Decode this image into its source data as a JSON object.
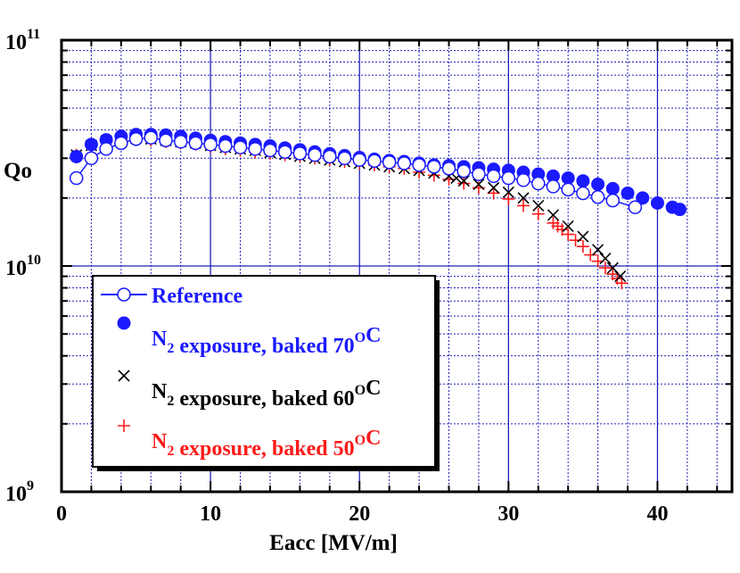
{
  "chart_data": {
    "type": "scatter",
    "xlabel": "Eacc [MV/m]",
    "ylabel": "Qo",
    "xlim": [
      0,
      45
    ],
    "ylim_log10": [
      9,
      11
    ],
    "x_ticks": [
      "0",
      "10",
      "20",
      "30",
      "40"
    ],
    "y_ticks": [
      {
        "base": "10",
        "exp": "9"
      },
      {
        "base": "10",
        "exp": "10"
      },
      {
        "base": "10",
        "exp": "11"
      }
    ],
    "grid": true,
    "legend_position": "lower-left",
    "colors": {
      "blue": "#1a1aff",
      "black": "#000000",
      "red": "#ff1a1a",
      "grid": "#2222bb"
    },
    "series": [
      {
        "name": "Reference",
        "label_parts": [
          {
            "t": "Reference"
          }
        ],
        "marker": "open-circle-line",
        "color": "#1a1aff",
        "points": [
          [
            1,
            24500000000.0
          ],
          [
            2,
            30000000000.0
          ],
          [
            3,
            33000000000.0
          ],
          [
            4,
            35000000000.0
          ],
          [
            5,
            36500000000.0
          ],
          [
            6,
            37000000000.0
          ],
          [
            7,
            36000000000.0
          ],
          [
            8,
            35500000000.0
          ],
          [
            9,
            35000000000.0
          ],
          [
            10,
            34500000000.0
          ],
          [
            11,
            34000000000.0
          ],
          [
            12,
            33500000000.0
          ],
          [
            13,
            33000000000.0
          ],
          [
            14,
            32500000000.0
          ],
          [
            15,
            32000000000.0
          ],
          [
            16,
            31500000000.0
          ],
          [
            17,
            31000000000.0
          ],
          [
            18,
            30500000000.0
          ],
          [
            19,
            30000000000.0
          ],
          [
            20,
            29500000000.0
          ],
          [
            21,
            29200000000.0
          ],
          [
            22,
            28800000000.0
          ],
          [
            23,
            28500000000.0
          ],
          [
            24,
            28000000000.0
          ],
          [
            25,
            27500000000.0
          ],
          [
            26,
            27000000000.0
          ],
          [
            27,
            26300000000.0
          ],
          [
            28,
            25500000000.0
          ],
          [
            29,
            25000000000.0
          ],
          [
            30,
            24500000000.0
          ],
          [
            31,
            24000000000.0
          ],
          [
            32,
            23200000000.0
          ],
          [
            33,
            22500000000.0
          ],
          [
            34,
            21800000000.0
          ],
          [
            35,
            21000000000.0
          ],
          [
            36,
            20200000000.0
          ],
          [
            37,
            19500000000.0
          ],
          [
            38.5,
            18200000000.0
          ]
        ]
      },
      {
        "name": "N2 exposure, baked 70OC",
        "label_parts": [
          {
            "t": "N"
          },
          {
            "sub": "2"
          },
          {
            "t": " exposure, baked 70"
          },
          {
            "sup": "O"
          },
          {
            "t": "C"
          }
        ],
        "marker": "filled-circle",
        "color": "#1a1aff",
        "points": [
          [
            1,
            30500000000.0
          ],
          [
            2,
            34500000000.0
          ],
          [
            3,
            36200000000.0
          ],
          [
            4,
            37500000000.0
          ],
          [
            5,
            38200000000.0
          ],
          [
            6,
            38200000000.0
          ],
          [
            7,
            38000000000.0
          ],
          [
            8,
            37500000000.0
          ],
          [
            9,
            36800000000.0
          ],
          [
            10,
            36000000000.0
          ],
          [
            11,
            35500000000.0
          ],
          [
            12,
            35000000000.0
          ],
          [
            13,
            34500000000.0
          ],
          [
            14,
            34000000000.0
          ],
          [
            15,
            33300000000.0
          ],
          [
            16,
            32700000000.0
          ],
          [
            17,
            32000000000.0
          ],
          [
            18,
            31400000000.0
          ],
          [
            19,
            30800000000.0
          ],
          [
            20,
            30200000000.0
          ],
          [
            21,
            29700000000.0
          ],
          [
            22,
            29300000000.0
          ],
          [
            23,
            29000000000.0
          ],
          [
            24,
            28500000000.0
          ],
          [
            25,
            28000000000.0
          ],
          [
            26,
            27800000000.0
          ],
          [
            27,
            27500000000.0
          ],
          [
            28,
            27200000000.0
          ],
          [
            29,
            26800000000.0
          ],
          [
            30,
            26500000000.0
          ],
          [
            31,
            26000000000.0
          ],
          [
            32,
            25500000000.0
          ],
          [
            33,
            25000000000.0
          ],
          [
            34,
            24500000000.0
          ],
          [
            35,
            23800000000.0
          ],
          [
            36,
            23000000000.0
          ],
          [
            37,
            22000000000.0
          ],
          [
            38,
            21000000000.0
          ],
          [
            39,
            20000000000.0
          ],
          [
            40,
            19000000000.0
          ],
          [
            41,
            18200000000.0
          ],
          [
            41.5,
            17800000000.0
          ]
        ]
      },
      {
        "name": "N2 exposure, baked 60OC",
        "label_parts": [
          {
            "t": "N"
          },
          {
            "sub": "2"
          },
          {
            "t": " exposure, baked 60"
          },
          {
            "sup": "O"
          },
          {
            "t": "C"
          }
        ],
        "marker": "x",
        "color": "#000000",
        "points": [
          [
            1,
            31000000000.0
          ],
          [
            2,
            34200000000.0
          ],
          [
            3,
            35800000000.0
          ],
          [
            4,
            36500000000.0
          ],
          [
            5,
            36800000000.0
          ],
          [
            6,
            36500000000.0
          ],
          [
            7,
            36000000000.0
          ],
          [
            8,
            35500000000.0
          ],
          [
            9,
            35000000000.0
          ],
          [
            10,
            34200000000.0
          ],
          [
            11,
            33500000000.0
          ],
          [
            12,
            33000000000.0
          ],
          [
            13,
            32500000000.0
          ],
          [
            14,
            31800000000.0
          ],
          [
            15,
            31200000000.0
          ],
          [
            16,
            30600000000.0
          ],
          [
            17,
            30000000000.0
          ],
          [
            18,
            29500000000.0
          ],
          [
            19,
            29000000000.0
          ],
          [
            20,
            28500000000.0
          ],
          [
            21,
            28000000000.0
          ],
          [
            22,
            27500000000.0
          ],
          [
            23,
            27000000000.0
          ],
          [
            24,
            26500000000.0
          ],
          [
            25,
            25800000000.0
          ],
          [
            26,
            25000000000.0
          ],
          [
            26.5,
            24500000000.0
          ],
          [
            27,
            23800000000.0
          ],
          [
            28,
            23000000000.0
          ],
          [
            29,
            22200000000.0
          ],
          [
            30,
            21200000000.0
          ],
          [
            31,
            20000000000.0
          ],
          [
            32,
            18500000000.0
          ],
          [
            33,
            16800000000.0
          ],
          [
            34,
            15000000000.0
          ],
          [
            35,
            13500000000.0
          ],
          [
            36,
            11800000000.0
          ],
          [
            36.5,
            10800000000.0
          ],
          [
            37,
            9800000000.0
          ],
          [
            37.5,
            9000000000.0
          ]
        ]
      },
      {
        "name": "N2 exposure, baked 50OC",
        "label_parts": [
          {
            "t": "N"
          },
          {
            "sub": "2"
          },
          {
            "t": " exposure, baked 50"
          },
          {
            "sup": "O"
          },
          {
            "t": "C"
          }
        ],
        "marker": "plus",
        "color": "#ff1a1a",
        "points": [
          [
            1,
            31000000000.0
          ],
          [
            2,
            34500000000.0
          ],
          [
            3,
            35500000000.0
          ],
          [
            4,
            36200000000.0
          ],
          [
            5,
            36200000000.0
          ],
          [
            6,
            36000000000.0
          ],
          [
            7,
            35500000000.0
          ],
          [
            8,
            35000000000.0
          ],
          [
            9,
            34500000000.0
          ],
          [
            10,
            33800000000.0
          ],
          [
            11,
            33000000000.0
          ],
          [
            12,
            32500000000.0
          ],
          [
            13,
            32000000000.0
          ],
          [
            14,
            31500000000.0
          ],
          [
            15,
            31000000000.0
          ],
          [
            16,
            30500000000.0
          ],
          [
            17,
            30000000000.0
          ],
          [
            18,
            29500000000.0
          ],
          [
            19,
            29000000000.0
          ],
          [
            20,
            28500000000.0
          ],
          [
            21,
            28000000000.0
          ],
          [
            22,
            27500000000.0
          ],
          [
            23,
            27000000000.0
          ],
          [
            24,
            26000000000.0
          ],
          [
            25,
            25200000000.0
          ],
          [
            26,
            24200000000.0
          ],
          [
            27,
            23200000000.0
          ],
          [
            28,
            22200000000.0
          ],
          [
            29,
            21000000000.0
          ],
          [
            30,
            19800000000.0
          ],
          [
            31,
            18500000000.0
          ],
          [
            32,
            17000000000.0
          ],
          [
            33,
            15500000000.0
          ],
          [
            33.3,
            15000000000.0
          ],
          [
            33.6,
            14500000000.0
          ],
          [
            34,
            13800000000.0
          ],
          [
            34.5,
            13000000000.0
          ],
          [
            35,
            12200000000.0
          ],
          [
            35.5,
            11200000000.0
          ],
          [
            36,
            10500000000.0
          ],
          [
            36.5,
            9800000000.0
          ],
          [
            37,
            9200000000.0
          ],
          [
            37.3,
            8800000000.0
          ],
          [
            37.6,
            8400000000.0
          ]
        ]
      }
    ]
  }
}
